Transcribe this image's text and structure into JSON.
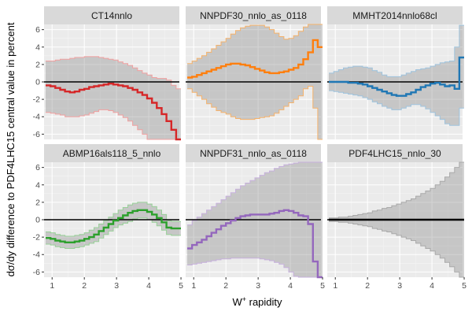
{
  "chart_data": {
    "type": "step-line-with-band",
    "layout": "facet grid 2 rows x 3 columns",
    "xlabel": "W",
    "xlabel_sup": "+",
    "xlabel_rest": " rapidity",
    "ylabel": "dσ/dy difference to PDF4LHC15 central value in percent",
    "xlim": [
      0.75,
      4.95
    ],
    "ylim": [
      -6.6,
      6.6
    ],
    "x_ticks": [
      1,
      2,
      3,
      4,
      5
    ],
    "x_tick_labels": [
      "1",
      "2",
      "3",
      "4",
      "5"
    ],
    "y_ticks": [
      -6,
      -4,
      -2,
      0,
      2,
      4,
      6
    ],
    "y_tick_labels": [
      "-6",
      "-4",
      "-2",
      "0",
      "2",
      "4",
      "6"
    ],
    "reference_line": 0,
    "x_bins": [
      0.8,
      0.95,
      1.1,
      1.25,
      1.4,
      1.55,
      1.7,
      1.85,
      2.0,
      2.15,
      2.3,
      2.45,
      2.6,
      2.75,
      2.9,
      3.05,
      3.2,
      3.35,
      3.5,
      3.65,
      3.8,
      3.95,
      4.1,
      4.25,
      4.4,
      4.55,
      4.7,
      4.85
    ],
    "panels": [
      {
        "title": "CT14nnlo",
        "color": "#d62728",
        "band_color": "#f0a0a0",
        "central": [
          -0.4,
          -0.5,
          -0.7,
          -0.9,
          -1.1,
          -1.2,
          -1.1,
          -0.9,
          -0.8,
          -0.6,
          -0.5,
          -0.4,
          -0.3,
          -0.2,
          -0.3,
          -0.4,
          -0.5,
          -0.7,
          -0.9,
          -1.2,
          -1.5,
          -1.9,
          -2.4,
          -3.0,
          -3.7,
          -4.5,
          -5.5,
          -6.6
        ],
        "upper": [
          2.4,
          2.4,
          2.5,
          2.6,
          2.6,
          2.7,
          2.8,
          2.8,
          2.9,
          2.9,
          2.9,
          2.8,
          2.7,
          2.6,
          2.5,
          2.3,
          2.1,
          1.9,
          1.6,
          1.3,
          1.0,
          0.8,
          0.5,
          0.4,
          0.4,
          0.2,
          -0.4,
          -0.8
        ],
        "lower": [
          -3.5,
          -3.6,
          -3.7,
          -3.8,
          -4.0,
          -4.0,
          -4.0,
          -3.9,
          -3.8,
          -3.6,
          -3.4,
          -3.2,
          -3.2,
          -3.3,
          -3.5,
          -3.8,
          -4.1,
          -4.5,
          -5.0,
          -5.5,
          -6.0,
          -6.6,
          -6.6,
          -6.6,
          -6.6,
          -6.6,
          -6.6,
          -6.6
        ]
      },
      {
        "title": "NNPDF30_nnlo_as_0118",
        "color": "#ff7f0e",
        "band_color": "#f5b26b",
        "central": [
          0.5,
          0.6,
          0.8,
          1.0,
          1.2,
          1.4,
          1.6,
          1.8,
          2.0,
          2.1,
          2.1,
          2.0,
          1.9,
          1.7,
          1.5,
          1.3,
          1.1,
          1.0,
          1.0,
          1.1,
          1.2,
          1.4,
          1.6,
          2.0,
          2.6,
          3.4,
          4.8,
          4.0
        ],
        "upper": [
          2.1,
          2.4,
          2.7,
          3.0,
          3.4,
          3.8,
          4.2,
          4.6,
          5.0,
          5.5,
          5.9,
          6.2,
          6.4,
          6.5,
          6.5,
          6.5,
          6.3,
          6.0,
          5.6,
          5.2,
          4.9,
          5.0,
          5.3,
          5.8,
          6.3,
          6.6,
          6.6,
          6.6
        ],
        "lower": [
          -0.8,
          -1.2,
          -1.6,
          -2.0,
          -2.5,
          -2.9,
          -3.3,
          -3.5,
          -3.7,
          -4.0,
          -4.2,
          -4.3,
          -4.3,
          -4.3,
          -4.2,
          -4.1,
          -4.0,
          -3.9,
          -3.6,
          -3.2,
          -2.8,
          -2.4,
          -2.0,
          -1.6,
          -0.8,
          -0.5,
          -3.0,
          -6.6
        ]
      },
      {
        "title": "MMHT2014nnlo68cl",
        "color": "#1f77b4",
        "band_color": "#9fc3dd",
        "central": [
          0.0,
          0.0,
          0.0,
          0.0,
          -0.1,
          -0.1,
          -0.2,
          -0.3,
          -0.5,
          -0.7,
          -0.9,
          -1.1,
          -1.3,
          -1.5,
          -1.6,
          -1.6,
          -1.4,
          -1.2,
          -0.9,
          -0.6,
          -0.4,
          -0.2,
          -0.1,
          -0.3,
          -0.5,
          -0.4,
          -0.8,
          2.8
        ],
        "upper": [
          1.0,
          1.2,
          1.4,
          1.6,
          1.7,
          1.8,
          1.8,
          1.7,
          1.6,
          1.3,
          1.1,
          0.8,
          0.6,
          0.6,
          0.6,
          0.8,
          1.0,
          1.2,
          1.4,
          1.5,
          1.6,
          1.8,
          2.0,
          2.2,
          2.3,
          2.4,
          4.0,
          6.5
        ],
        "lower": [
          -1.0,
          -1.1,
          -1.2,
          -1.3,
          -1.4,
          -1.5,
          -1.6,
          -1.8,
          -2.0,
          -2.3,
          -2.5,
          -2.8,
          -3.0,
          -3.2,
          -3.2,
          -3.0,
          -2.8,
          -2.6,
          -2.6,
          -2.8,
          -3.1,
          -3.5,
          -3.9,
          -4.3,
          -4.8,
          -5.0,
          -5.0,
          -3.0
        ]
      },
      {
        "title": "ABMP16als118_5_nnlo",
        "color": "#2ca02c",
        "band_color": "#98d098",
        "central": [
          -2.1,
          -2.2,
          -2.4,
          -2.5,
          -2.6,
          -2.6,
          -2.5,
          -2.4,
          -2.2,
          -2.0,
          -1.7,
          -1.3,
          -0.9,
          -0.5,
          -0.1,
          0.2,
          0.5,
          0.8,
          1.0,
          1.1,
          1.1,
          0.9,
          0.6,
          0.2,
          -0.3,
          -0.9,
          -1.0,
          -1.0
        ],
        "upper": [
          -1.4,
          -1.5,
          -1.7,
          -1.8,
          -1.9,
          -1.9,
          -1.8,
          -1.7,
          -1.5,
          -1.2,
          -0.9,
          -0.5,
          -0.1,
          0.3,
          0.7,
          1.1,
          1.4,
          1.7,
          1.9,
          2.0,
          2.0,
          1.8,
          1.5,
          1.1,
          0.6,
          -0.1,
          -0.2,
          -0.2
        ],
        "lower": [
          -2.8,
          -2.9,
          -3.1,
          -3.2,
          -3.3,
          -3.3,
          -3.2,
          -3.1,
          -2.9,
          -2.7,
          -2.5,
          -2.1,
          -1.7,
          -1.3,
          -0.9,
          -0.6,
          -0.4,
          -0.2,
          0.1,
          0.2,
          0.2,
          0.0,
          -0.3,
          -0.7,
          -1.2,
          -1.7,
          -1.8,
          -1.8
        ]
      },
      {
        "title": "NNPDF31_nnlo_as_0118",
        "color": "#9467bd",
        "band_color": "#c6b0dc",
        "central": [
          -3.3,
          -2.9,
          -2.6,
          -2.3,
          -1.9,
          -1.5,
          -1.1,
          -0.7,
          -0.4,
          -0.1,
          0.2,
          0.4,
          0.5,
          0.6,
          0.6,
          0.6,
          0.6,
          0.7,
          0.8,
          1.0,
          1.1,
          1.0,
          0.8,
          0.5,
          0.4,
          -0.5,
          -4.8,
          -6.6
        ],
        "upper": [
          -0.6,
          -0.1,
          0.3,
          0.7,
          1.1,
          1.5,
          1.9,
          2.3,
          2.7,
          3.1,
          3.5,
          3.9,
          4.2,
          4.5,
          4.8,
          5.1,
          5.4,
          5.6,
          5.9,
          6.1,
          6.3,
          6.4,
          6.5,
          6.6,
          6.6,
          6.6,
          6.6,
          6.6
        ],
        "lower": [
          -5.2,
          -5.1,
          -5.0,
          -4.9,
          -4.8,
          -4.7,
          -4.6,
          -4.5,
          -4.5,
          -4.4,
          -4.4,
          -4.4,
          -4.4,
          -4.4,
          -4.4,
          -4.5,
          -4.6,
          -4.7,
          -4.9,
          -5.1,
          -5.5,
          -6.0,
          -6.5,
          -6.6,
          -6.6,
          -6.6,
          -6.6,
          -6.6
        ]
      },
      {
        "title": "PDF4LHC15_nnlo_30",
        "color": "#000000",
        "band_color": "#aaaaaa",
        "central": [
          0,
          0,
          0,
          0,
          0,
          0,
          0,
          0,
          0,
          0,
          0,
          0,
          0,
          0,
          0,
          0,
          0,
          0,
          0,
          0,
          0,
          0,
          0,
          0,
          0,
          0,
          0,
          0
        ],
        "upper": [
          0.2,
          0.2,
          0.3,
          0.3,
          0.4,
          0.5,
          0.6,
          0.7,
          0.8,
          1.0,
          1.1,
          1.3,
          1.4,
          1.6,
          1.8,
          2.0,
          2.2,
          2.4,
          2.7,
          3.0,
          3.3,
          3.6,
          4.0,
          4.4,
          4.9,
          5.4,
          6.0,
          6.6
        ],
        "lower": [
          -0.2,
          -0.2,
          -0.3,
          -0.3,
          -0.4,
          -0.5,
          -0.6,
          -0.7,
          -0.8,
          -1.0,
          -1.1,
          -1.3,
          -1.4,
          -1.6,
          -1.8,
          -2.0,
          -2.2,
          -2.4,
          -2.7,
          -3.0,
          -3.3,
          -3.6,
          -4.0,
          -4.4,
          -4.9,
          -5.4,
          -6.0,
          -6.6
        ]
      }
    ]
  }
}
